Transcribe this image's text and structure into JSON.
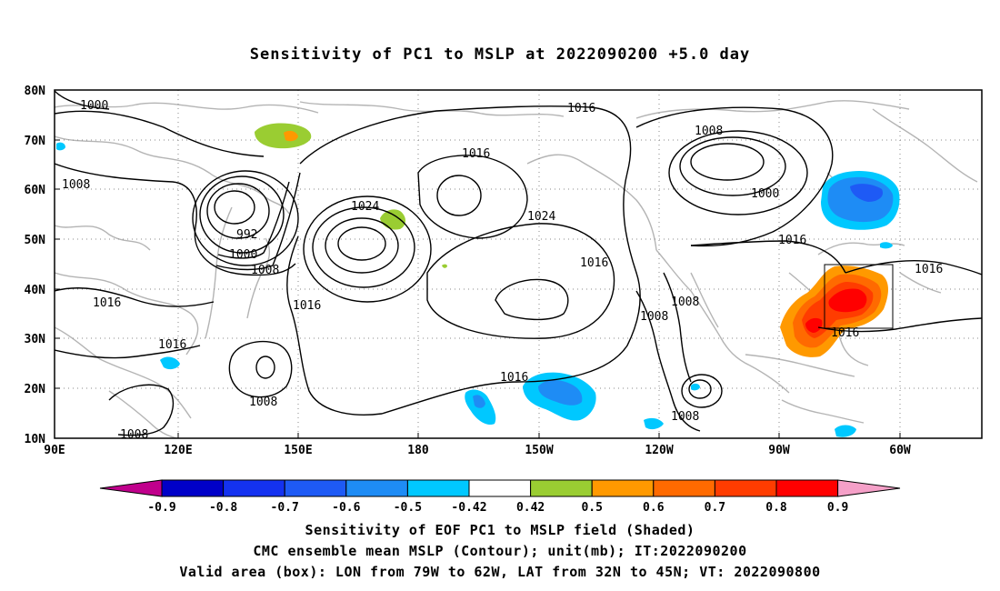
{
  "title": "Sensitivity of PC1 to MSLP at 2022090200 +5.0 day",
  "map": {
    "lon_ticks": [
      "90E",
      "120E",
      "150E",
      "180",
      "150W",
      "120W",
      "90W",
      "60W"
    ],
    "lat_ticks": [
      "80N",
      "70N",
      "60N",
      "50N",
      "40N",
      "30N",
      "20N",
      "10N"
    ],
    "contour_labels": [
      "1000",
      "1008",
      "1016",
      "1016",
      "1024",
      "1024",
      "1000",
      "1008",
      "1016",
      "1000",
      "1016",
      "992",
      "1000",
      "1008",
      "1008",
      "1016",
      "1016",
      "1016",
      "1016",
      "1016",
      "1016",
      "1008",
      "1008",
      "1008",
      "1016",
      "1008",
      "1008",
      "1008"
    ],
    "valid_box": {
      "lon_from": "79W",
      "lon_to": "62W",
      "lat_from": "32N",
      "lat_to": "45N"
    }
  },
  "colorbar": {
    "labels": [
      "-0.9",
      "-0.8",
      "-0.7",
      "-0.6",
      "-0.5",
      "-0.42",
      "0.42",
      "0.5",
      "0.6",
      "0.7",
      "0.8",
      "0.9"
    ],
    "colors": [
      "#c0008c",
      "#0000c8",
      "#1432f0",
      "#1e5af5",
      "#1e8cf5",
      "#00c8ff",
      "#ffffff",
      "#9acd32",
      "#ff9900",
      "#ff6a00",
      "#ff3c00",
      "#ff0000",
      "#f5a0c8"
    ]
  },
  "footer": {
    "line1": "Sensitivity of EOF PC1 to MSLP field (Shaded)",
    "line2": "CMC ensemble mean MSLP (Contour); unit(mb); IT:2022090200",
    "line3": "Valid area (box): LON from 79W to 62W, LAT from 32N to 45N; VT: 2022090800"
  }
}
